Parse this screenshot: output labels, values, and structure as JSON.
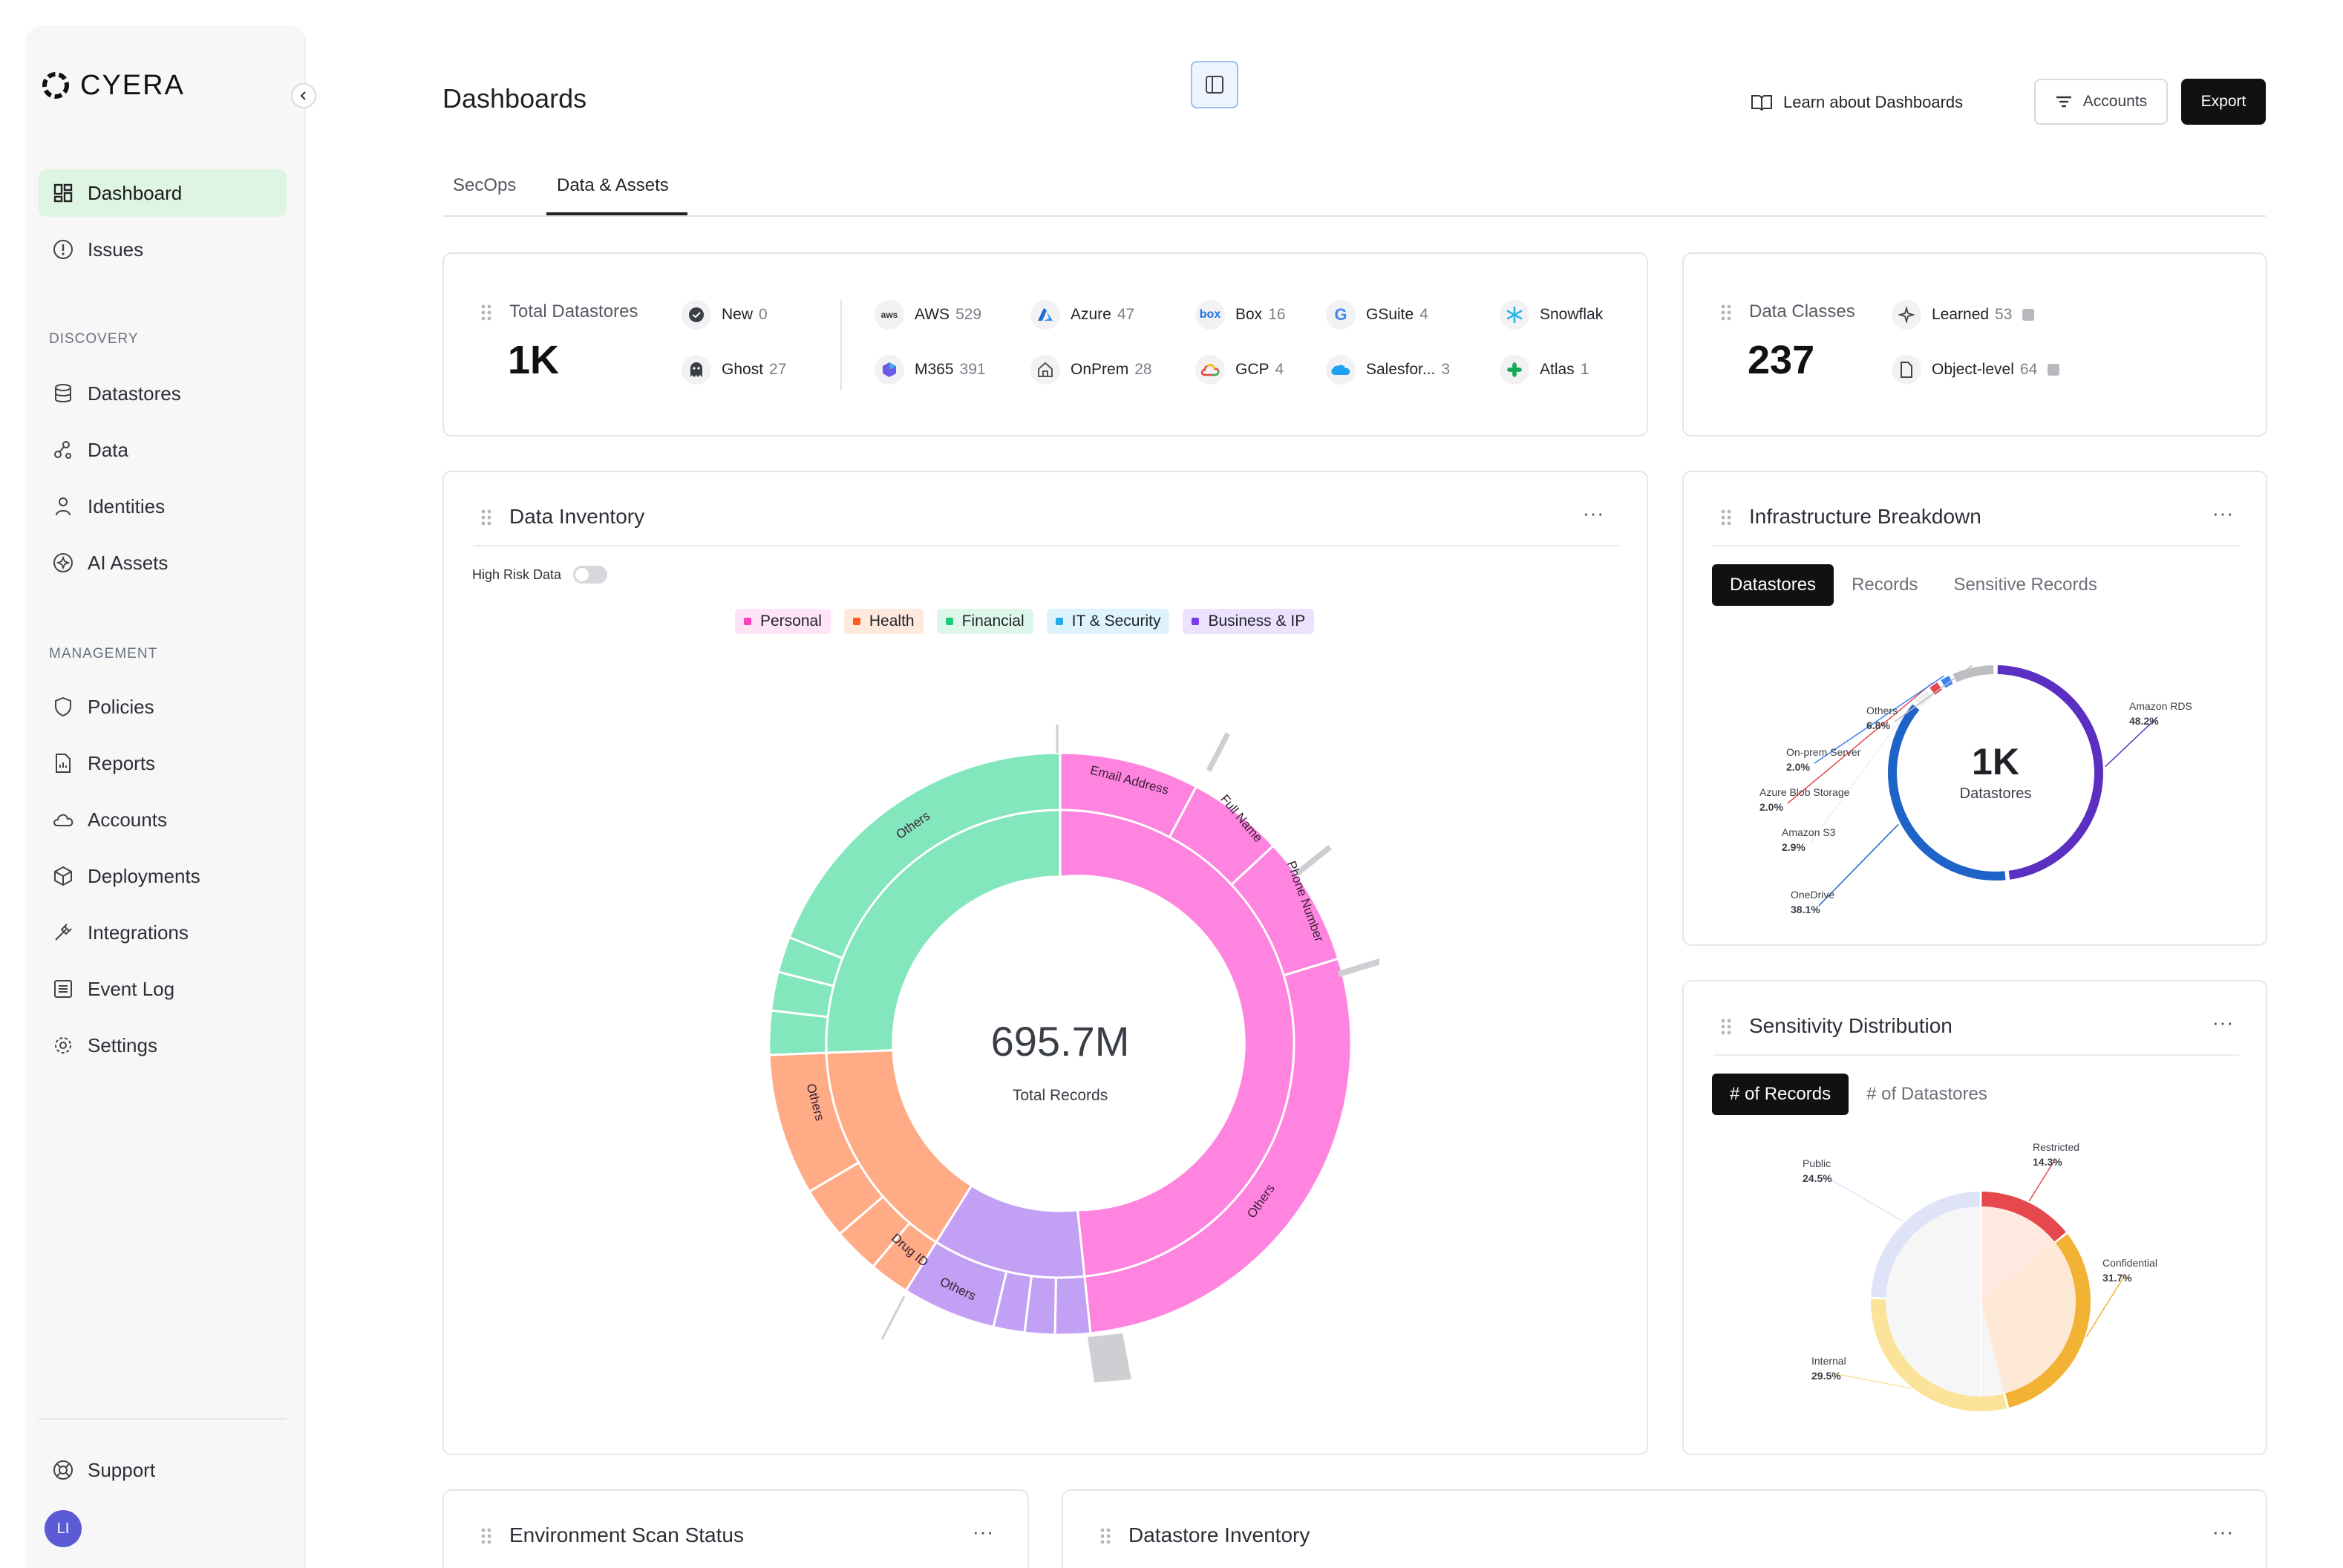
{
  "brand": {
    "name": "CYERA"
  },
  "sidebar": {
    "primary": [
      {
        "label": "Dashboard",
        "icon": "dashboard-icon",
        "active": true
      },
      {
        "label": "Issues",
        "icon": "alert-circle-icon"
      }
    ],
    "discovery_heading": "DISCOVERY",
    "discovery": [
      {
        "label": "Datastores",
        "icon": "database-icon"
      },
      {
        "label": "Data",
        "icon": "data-nodes-icon"
      },
      {
        "label": "Identities",
        "icon": "user-icon"
      },
      {
        "label": "AI Assets",
        "icon": "ai-icon"
      }
    ],
    "management_heading": "MANAGEMENT",
    "management": [
      {
        "label": "Policies",
        "icon": "shield-icon"
      },
      {
        "label": "Reports",
        "icon": "report-icon"
      },
      {
        "label": "Accounts",
        "icon": "cloud-icon"
      },
      {
        "label": "Deployments",
        "icon": "cube-icon"
      },
      {
        "label": "Integrations",
        "icon": "plug-icon"
      },
      {
        "label": "Event Log",
        "icon": "list-icon"
      },
      {
        "label": "Settings",
        "icon": "gear-icon"
      }
    ],
    "support_label": "Support",
    "avatar_initials": "LI"
  },
  "header": {
    "title": "Dashboards",
    "learn_label": "Learn about Dashboards",
    "accounts_label": "Accounts",
    "export_label": "Export"
  },
  "tabs": [
    {
      "label": "SecOps",
      "active": false
    },
    {
      "label": "Data & Assets",
      "active": true
    }
  ],
  "datastores_card": {
    "label": "Total Datastores",
    "value": "1K",
    "status": [
      {
        "label": "New",
        "count": "0"
      },
      {
        "label": "Ghost",
        "count": "27"
      }
    ],
    "providers": [
      {
        "label": "AWS",
        "count": "529",
        "icon": "aws-icon"
      },
      {
        "label": "M365",
        "count": "391",
        "icon": "m365-icon"
      },
      {
        "label": "Azure",
        "count": "47",
        "icon": "azure-icon"
      },
      {
        "label": "OnPrem",
        "count": "28",
        "icon": "onprem-icon"
      },
      {
        "label": "Box",
        "count": "16",
        "icon": "box-icon"
      },
      {
        "label": "GCP",
        "count": "4",
        "icon": "gcp-icon"
      },
      {
        "label": "GSuite",
        "count": "4",
        "icon": "gsuite-icon"
      },
      {
        "label": "Salesfor...",
        "count": "3",
        "icon": "salesforce-icon"
      },
      {
        "label": "Snowflak",
        "count": "",
        "icon": "snowflake-icon"
      },
      {
        "label": "Atlas",
        "count": "1",
        "icon": "atlas-icon"
      }
    ]
  },
  "classes_card": {
    "label": "Data Classes",
    "value": "237",
    "items": [
      {
        "label": "Learned",
        "count": "53"
      },
      {
        "label": "Object-level",
        "count": "64"
      }
    ]
  },
  "inventory_card": {
    "title": "Data Inventory",
    "menu": "···",
    "high_risk_label": "High Risk Data",
    "legend": [
      {
        "label": "Personal",
        "color": "#ff7ad9",
        "bg": "#ffe3f6"
      },
      {
        "label": "Health",
        "color": "#ff6b2c",
        "bg": "#ffe9dd"
      },
      {
        "label": "Financial",
        "color": "#2fcf86",
        "bg": "#ddf8ea"
      },
      {
        "label": "IT & Security",
        "color": "#33b5ee",
        "bg": "#def3fc"
      },
      {
        "label": "Business & IP",
        "color": "#8a4cf0",
        "bg": "#ece2fd"
      }
    ],
    "center_value": "695.7M",
    "center_label": "Total Records",
    "ring_labels": {
      "email": "Email Address",
      "fullname": "Full Name",
      "phone": "Phone Number",
      "others_personal": "Others",
      "others_financial": "Others",
      "others_health": "Others",
      "drug": "Drug ID",
      "others_business": "Others"
    }
  },
  "infra_card": {
    "title": "Infrastructure Breakdown",
    "menu": "···",
    "tabs": [
      {
        "label": "Datastores",
        "active": true
      },
      {
        "label": "Records",
        "active": false
      },
      {
        "label": "Sensitive Records",
        "active": false
      }
    ],
    "center_value": "1K",
    "center_label": "Datastores",
    "slices": [
      {
        "label": "Amazon RDS",
        "pct": "48.2%",
        "value": 48.2,
        "color": "#5a2fc2"
      },
      {
        "label": "OneDrive",
        "pct": "38.1%",
        "value": 38.1,
        "color": "#1e63c8"
      },
      {
        "label": "Amazon S3",
        "pct": "2.9%",
        "value": 2.9,
        "color": "#ffffff"
      },
      {
        "label": "Azure Blob Storage",
        "pct": "2.0%",
        "value": 2.0,
        "color": "#e5484d"
      },
      {
        "label": "On-prem Server",
        "pct": "2.0%",
        "value": 2.0,
        "color": "#3b82f6"
      },
      {
        "label": "Others",
        "pct": "6.8%",
        "value": 6.8,
        "color": "#bdbdc2"
      }
    ]
  },
  "sensitivity_card": {
    "title": "Sensitivity Distribution",
    "menu": "···",
    "tabs": [
      {
        "label": "# of Records",
        "active": true
      },
      {
        "label": "# of Datastores",
        "active": false
      }
    ],
    "slices": [
      {
        "label": "Restricted",
        "pct": "14.3%",
        "value": 14.3,
        "color": "#e5484d",
        "fill": "#ffe9e0"
      },
      {
        "label": "Confidential",
        "pct": "31.7%",
        "value": 31.7,
        "color": "#f2b233",
        "fill": "#fde9d6"
      },
      {
        "label": "Internal",
        "pct": "29.5%",
        "value": 29.5,
        "color": "#fbe39a",
        "fill": "#f6f6f7"
      },
      {
        "label": "Public",
        "pct": "24.5%",
        "value": 24.5,
        "color": "#dfe3f8",
        "fill": "#f6f6f7"
      }
    ]
  },
  "bottom_cards": {
    "env_title": "Environment Scan Status",
    "inv_title": "Datastore Inventory",
    "menu": "···"
  }
}
